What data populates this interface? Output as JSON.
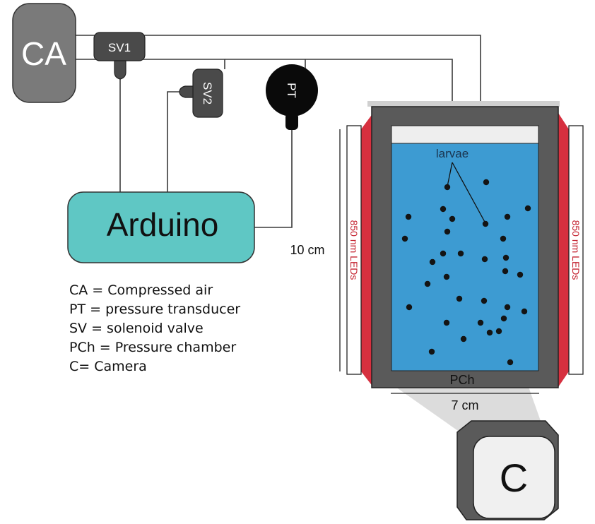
{
  "components": {
    "compressed_air": "CA",
    "solenoid_valve_1": "SV1",
    "solenoid_valve_2": "SV2",
    "pressure_transducer": "PT",
    "controller": "Arduino",
    "camera": "C",
    "chamber_label": "PCh"
  },
  "labels": {
    "larvae": "larvae",
    "leds_left": "850 nm LEDs",
    "leds_right": "850 nm LEDs",
    "height": "10 cm",
    "width": "7 cm"
  },
  "legend": [
    "CA = Compressed air",
    "PT = pressure transducer",
    "SV = solenoid valve",
    "PCh = Pressure chamber",
    "C= Camera"
  ],
  "colors": {
    "water": "#3d9bd2",
    "chamber_frame": "#5a5a5a",
    "arduino_fill": "#5fc7c4",
    "led_glow": "#d6303f",
    "led_text": "#c4222f",
    "valve": "#4a4a4a",
    "transducer": "#0a0a0a",
    "camera_front": "#f0f0f0",
    "tank_gray": "#7a7a7a"
  }
}
